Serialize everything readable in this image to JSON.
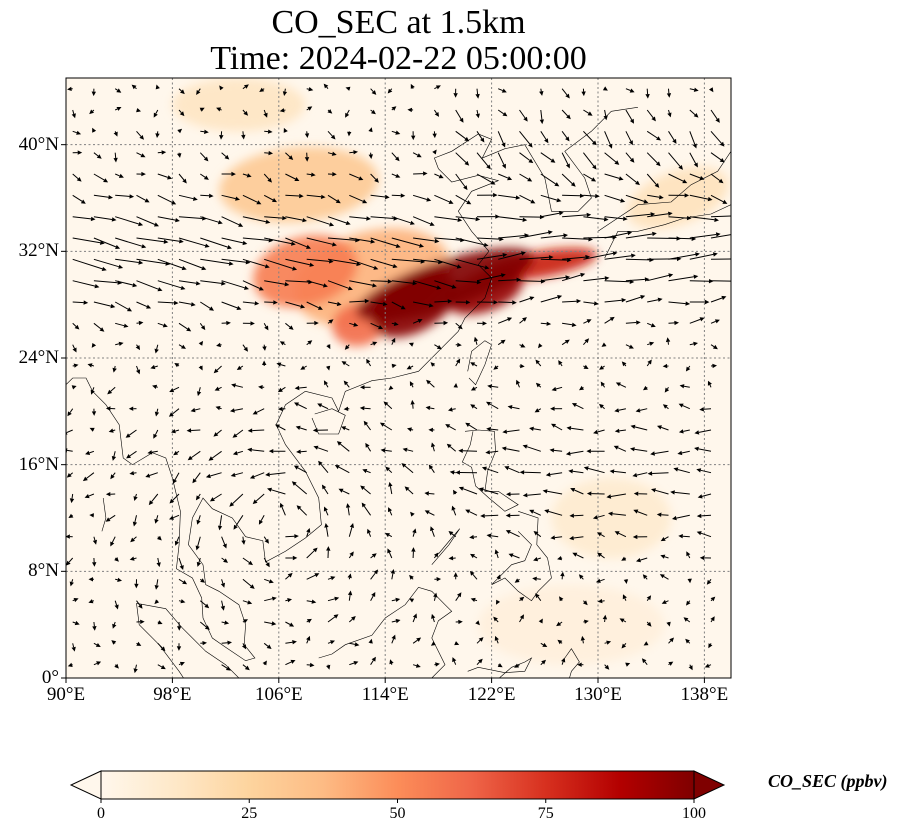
{
  "title": {
    "line1": "CO_SEC at 1.5km",
    "line2": "Time: 2024-02-22 05:00:00"
  },
  "map": {
    "extent": {
      "lon": [
        90,
        140
      ],
      "lat": [
        0,
        45
      ]
    },
    "lon_ticks": [
      {
        "value": 90,
        "label": "90°E"
      },
      {
        "value": 98,
        "label": "98°E"
      },
      {
        "value": 106,
        "label": "106°E"
      },
      {
        "value": 114,
        "label": "114°E"
      },
      {
        "value": 122,
        "label": "122°E"
      },
      {
        "value": 130,
        "label": "130°E"
      },
      {
        "value": 138,
        "label": "138°E"
      }
    ],
    "lat_ticks": [
      {
        "value": 0,
        "label": "0°"
      },
      {
        "value": 8,
        "label": "8°N"
      },
      {
        "value": 16,
        "label": "16°N"
      },
      {
        "value": 24,
        "label": "24°N"
      },
      {
        "value": 32,
        "label": "32°N"
      },
      {
        "value": 40,
        "label": "40°N"
      }
    ],
    "gridlines": true,
    "background_color": "#fff7ec",
    "co_plumes": [
      {
        "lon": 118.5,
        "lat": 29.5,
        "value": 100,
        "rlon": 7.0,
        "rlat": 1.8,
        "angle": -18
      },
      {
        "lon": 116.2,
        "lat": 28.0,
        "value": 98,
        "rlon": 3.5,
        "rlat": 2.0,
        "angle": -30
      },
      {
        "lon": 121.5,
        "lat": 29.0,
        "value": 95,
        "rlon": 3.0,
        "rlat": 1.5,
        "angle": -20
      },
      {
        "lon": 125.5,
        "lat": 31.0,
        "value": 80,
        "rlon": 4.5,
        "rlat": 1.0,
        "angle": -10
      },
      {
        "lon": 108.0,
        "lat": 30.5,
        "value": 55,
        "rlon": 4.0,
        "rlat": 2.6,
        "angle": -15
      },
      {
        "lon": 112.0,
        "lat": 26.5,
        "value": 60,
        "rlon": 2.0,
        "rlat": 1.6,
        "angle": -10
      },
      {
        "lon": 113.0,
        "lat": 30.0,
        "value": 40,
        "rlon": 6.0,
        "rlat": 3.5,
        "angle": -15
      },
      {
        "lon": 107.5,
        "lat": 37.0,
        "value": 30,
        "rlon": 6.0,
        "rlat": 2.8,
        "angle": -5
      },
      {
        "lon": 103.0,
        "lat": 43.0,
        "value": 14,
        "rlon": 5.0,
        "rlat": 2.0,
        "angle": 0
      },
      {
        "lon": 136.0,
        "lat": 36.0,
        "value": 16,
        "rlon": 4.0,
        "rlat": 2.0,
        "angle": -20
      },
      {
        "lon": 131.0,
        "lat": 12.0,
        "value": 10,
        "rlon": 4.5,
        "rlat": 3.0,
        "angle": 0
      },
      {
        "lon": 128.0,
        "lat": 4.0,
        "value": 6,
        "rlon": 7.0,
        "rlat": 3.0,
        "angle": 0
      }
    ],
    "wind_field": "vector arrows showing wind direction at 1.5km"
  },
  "colorbar": {
    "label": "CO_SEC (ppbv)",
    "range": [
      0,
      100
    ],
    "ticks": [
      {
        "value": 0,
        "label": "0"
      },
      {
        "value": 25,
        "label": "25"
      },
      {
        "value": 50,
        "label": "50"
      },
      {
        "value": 75,
        "label": "75"
      },
      {
        "value": 100,
        "label": "100"
      }
    ],
    "colormap": "OrRd",
    "colormap_stops": [
      "#fff7ec",
      "#fee8c8",
      "#fdd49e",
      "#fdbb84",
      "#fc8d59",
      "#ef6548",
      "#d7301f",
      "#b30000",
      "#7f0000"
    ],
    "extend": "both"
  },
  "colors": {
    "arrow": "#000000",
    "coastline": "#000000",
    "grid": "#808080"
  }
}
